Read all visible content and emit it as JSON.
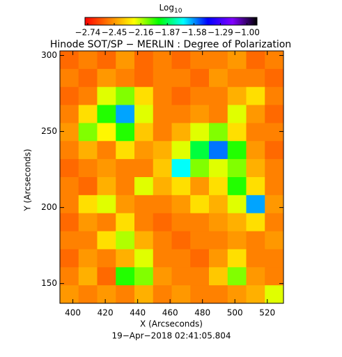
{
  "chart_data": {
    "type": "heatmap",
    "title": "Hinode SOT/SP − MERLIN : Degree of Polarization",
    "colorbar_label": {
      "base": "Log",
      "sub": "10"
    },
    "xlabel": "X (Arcseconds)",
    "ylabel": "Y (Arcseconds)",
    "footer": "19−Apr−2018 02:41:05.804",
    "xlim": [
      392,
      530
    ],
    "ylim": [
      137,
      303
    ],
    "xticks": [
      400,
      420,
      440,
      460,
      480,
      500,
      520
    ],
    "yticks": [
      150,
      200,
      250,
      300
    ],
    "clim": [
      -2.77,
      -0.89
    ],
    "cticks": [
      {
        "value": -2.74,
        "label": "−2.74"
      },
      {
        "value": -2.45,
        "label": "−2.45"
      },
      {
        "value": -2.16,
        "label": "−2.16"
      },
      {
        "value": -1.87,
        "label": "−1.87"
      },
      {
        "value": -1.58,
        "label": "−1.58"
      },
      {
        "value": -1.29,
        "label": "−1.29"
      },
      {
        "value": -1.0,
        "label": "−1.00"
      }
    ],
    "colormap": [
      "#ff0000",
      "#ff8000",
      "#ffff00",
      "#00ff00",
      "#00ffff",
      "#0000ff",
      "#8000ff",
      "#000000"
    ],
    "z": [
      [
        -2.55,
        -2.5,
        -2.55,
        -2.45,
        -2.55,
        -2.5,
        -2.55,
        -2.5,
        -2.5,
        -2.45,
        -2.55,
        -2.5
      ],
      [
        -2.5,
        -2.55,
        -2.45,
        -2.5,
        -2.55,
        -2.5,
        -2.5,
        -2.55,
        -2.45,
        -2.5,
        -2.5,
        -2.55
      ],
      [
        -2.55,
        -2.5,
        -2.2,
        -2.1,
        -2.3,
        -2.5,
        -2.55,
        -2.5,
        -2.5,
        -2.4,
        -2.3,
        -2.5
      ],
      [
        -2.5,
        -2.3,
        -2.0,
        -1.6,
        -2.2,
        -2.5,
        -2.5,
        -2.45,
        -2.5,
        -2.2,
        -2.45,
        -2.55
      ],
      [
        -2.45,
        -2.1,
        -2.25,
        -2.0,
        -2.35,
        -2.5,
        -2.4,
        -2.2,
        -2.1,
        -2.3,
        -2.5,
        -2.5
      ],
      [
        -2.5,
        -2.4,
        -2.5,
        -2.3,
        -2.45,
        -2.4,
        -2.2,
        -1.9,
        -1.55,
        -2.0,
        -2.45,
        -2.55
      ],
      [
        -2.55,
        -2.5,
        -2.45,
        -2.5,
        -2.5,
        -2.35,
        -1.7,
        -2.1,
        -2.2,
        -2.1,
        -2.4,
        -2.5
      ],
      [
        -2.5,
        -2.55,
        -2.4,
        -2.5,
        -2.2,
        -2.4,
        -2.3,
        -2.45,
        -2.3,
        -2.0,
        -2.3,
        -2.5
      ],
      [
        -2.5,
        -2.3,
        -2.2,
        -2.45,
        -2.5,
        -2.5,
        -2.45,
        -2.3,
        -2.4,
        -2.2,
        -1.6,
        -2.45
      ],
      [
        -2.55,
        -2.45,
        -2.5,
        -2.3,
        -2.5,
        -2.55,
        -2.5,
        -2.5,
        -2.45,
        -2.4,
        -2.3,
        -2.5
      ],
      [
        -2.5,
        -2.5,
        -2.3,
        -2.15,
        -2.4,
        -2.5,
        -2.55,
        -2.5,
        -2.5,
        -2.45,
        -2.5,
        -2.45
      ],
      [
        -2.55,
        -2.45,
        -2.5,
        -2.4,
        -2.2,
        -2.5,
        -2.5,
        -2.55,
        -2.45,
        -2.3,
        -2.5,
        -2.5
      ],
      [
        -2.5,
        -2.4,
        -2.55,
        -2.0,
        -2.1,
        -2.45,
        -2.5,
        -2.5,
        -2.35,
        -2.1,
        -2.45,
        -2.5
      ],
      [
        -2.45,
        -2.5,
        -2.45,
        -2.5,
        -2.4,
        -2.5,
        -2.45,
        -2.5,
        -2.5,
        -2.45,
        -2.4,
        -2.2
      ]
    ]
  }
}
